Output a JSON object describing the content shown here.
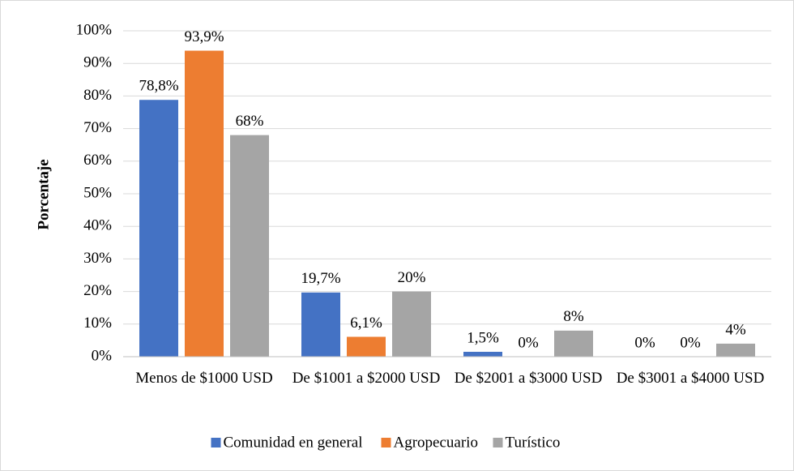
{
  "chart_data": {
    "type": "bar",
    "y_label": "Porcentaje",
    "categories": [
      "Menos de $1000 USD",
      "De $1001 a $2000 USD",
      "De $2001 a $3000 USD",
      "De $3001 a $4000 USD"
    ],
    "series": [
      {
        "name": "Comunidad en general",
        "color": "#4472c4",
        "values": [
          78.8,
          19.7,
          1.5,
          0
        ],
        "value_labels": [
          "78,8%",
          "19,7%",
          "1,5%",
          "0%"
        ]
      },
      {
        "name": "Agropecuario",
        "color": "#ed7d31",
        "values": [
          93.9,
          6.1,
          0,
          0
        ],
        "value_labels": [
          "93,9%",
          "6,1%",
          "0%",
          "0%"
        ]
      },
      {
        "name": "Turístico",
        "color": "#a5a5a5",
        "values": [
          68,
          20,
          8,
          4
        ],
        "value_labels": [
          "68%",
          "20%",
          "8%",
          "4%"
        ]
      }
    ],
    "ylim": [
      0,
      100
    ],
    "yticks": [
      {
        "value": 0,
        "label": "0%"
      },
      {
        "value": 10,
        "label": "10%"
      },
      {
        "value": 20,
        "label": "20%"
      },
      {
        "value": 30,
        "label": "30%"
      },
      {
        "value": 40,
        "label": "40%"
      },
      {
        "value": 50,
        "label": "50%"
      },
      {
        "value": 60,
        "label": "60%"
      },
      {
        "value": 70,
        "label": "70%"
      },
      {
        "value": 80,
        "label": "80%"
      },
      {
        "value": 90,
        "label": "90%"
      },
      {
        "value": 100,
        "label": "100%"
      }
    ],
    "grid": true,
    "legend": "bottom"
  }
}
